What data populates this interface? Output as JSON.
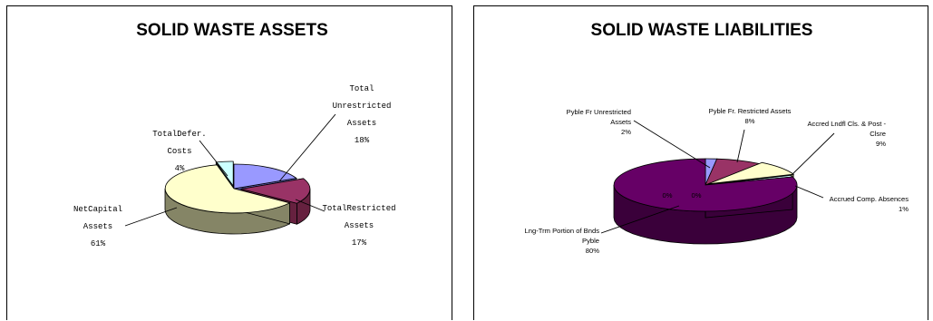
{
  "chart_data": [
    {
      "type": "pie",
      "title": "SOLID WASTE ASSETS",
      "slices": [
        {
          "name_lines": [
            "Total",
            "Unrestricted",
            "Assets"
          ],
          "pct_label": "18%",
          "value": 18,
          "color": "#9999ff",
          "side": "#5a5aa8"
        },
        {
          "name_lines": [
            "TotalRestricted",
            "Assets"
          ],
          "pct_label": "17%",
          "value": 17,
          "color": "#993366",
          "side": "#66213f"
        },
        {
          "name_lines": [
            "NetCapital",
            "Assets"
          ],
          "pct_label": "61%",
          "value": 61,
          "color": "#ffffcc",
          "side": "#858566"
        },
        {
          "name_lines": [
            "TotalDefer.",
            "Costs"
          ],
          "pct_label": "4%",
          "value": 4,
          "color": "#ccffff",
          "side": "#4f8a8a"
        }
      ]
    },
    {
      "type": "pie",
      "title": "SOLID WASTE LIABILITIES",
      "slices": [
        {
          "name_lines": [
            "Pyble Fr Unrestricted",
            "Assets"
          ],
          "pct_label": "2%",
          "value": 2,
          "color": "#9999ff",
          "side": "#5a5aa8"
        },
        {
          "name_lines": [
            "Pyble Fr. Restricted Assets"
          ],
          "pct_label": "8%",
          "value": 8,
          "color": "#993366",
          "side": "#66213f"
        },
        {
          "name_lines": [
            "Accred Lndfl Cls. & Post -",
            "Clsre"
          ],
          "pct_label": "9%",
          "value": 9,
          "color": "#ffffcc",
          "side": "#858566"
        },
        {
          "name_lines": [
            "Accrued Comp. Absences"
          ],
          "pct_label": "1%",
          "value": 1,
          "color": "#ccffff",
          "side": "#4f8a8a"
        },
        {
          "name_lines": [
            "Lng-Trm Portion of Bnds",
            "Pyble"
          ],
          "pct_label": "80%",
          "value": 80,
          "color": "#660066",
          "side": "#3a003a"
        }
      ],
      "inner_labels": [
        "0%",
        "0%"
      ]
    }
  ]
}
